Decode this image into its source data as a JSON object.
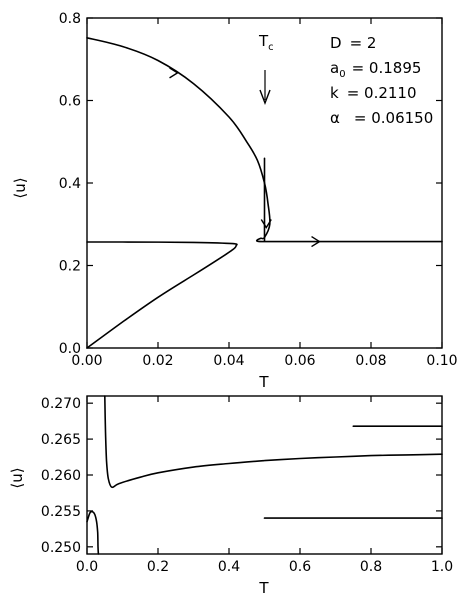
{
  "chart_data": [
    {
      "type": "line",
      "xlabel": "T",
      "ylabel": "⟨u⟩",
      "xlim": [
        0,
        0.1
      ],
      "ylim": [
        0,
        0.8
      ],
      "xticks": [
        "0.00",
        "0.02",
        "0.04",
        "0.06",
        "0.08",
        "0.10"
      ],
      "yticks": [
        "0.0",
        "0.2",
        "0.4",
        "0.6",
        "0.8"
      ],
      "annotations": {
        "tc_label": "T",
        "tc_sub": "c",
        "params": [
          {
            "label": "D",
            "label_sub": "",
            "eq": "= 2"
          },
          {
            "label": "a",
            "label_sub": "0",
            "eq": "= 0.1895"
          },
          {
            "label": "k",
            "label_sub": "",
            "eq": "= 0.2110"
          },
          {
            "label": "α",
            "label_sub": "",
            "eq": "= 0.06150"
          }
        ]
      },
      "series": [
        {
          "values_xy": [
            [
              0.0,
              0.752
            ],
            [
              0.01,
              0.731
            ],
            [
              0.02,
              0.697
            ],
            [
              0.03,
              0.641
            ],
            [
              0.04,
              0.56
            ],
            [
              0.045,
              0.5
            ],
            [
              0.048,
              0.455
            ],
            [
              0.05,
              0.4
            ],
            [
              0.051,
              0.35
            ],
            [
              0.0515,
              0.3
            ],
            [
              0.05,
              0.268
            ],
            [
              0.049,
              0.266
            ],
            [
              0.048,
              0.262
            ],
            [
              0.048,
              0.259
            ],
            [
              0.05,
              0.258
            ],
            [
              0.06,
              0.258
            ],
            [
              0.08,
              0.258
            ],
            [
              0.1,
              0.258
            ]
          ]
        },
        {
          "values_xy": [
            [
              0.0,
              0.0
            ],
            [
              0.01,
              0.063
            ],
            [
              0.02,
              0.123
            ],
            [
              0.03,
              0.177
            ],
            [
              0.037,
              0.215
            ],
            [
              0.041,
              0.238
            ],
            [
              0.042,
              0.248
            ],
            [
              0.041,
              0.253
            ],
            [
              0.03,
              0.256
            ],
            [
              0.01,
              0.257
            ],
            [
              0.0,
              0.257
            ]
          ]
        },
        {
          "values_xy": [
            [
              0.05,
              0.46
            ],
            [
              0.05,
              0.26
            ]
          ]
        }
      ]
    },
    {
      "type": "line",
      "xlabel": "T",
      "ylabel": "⟨u⟩",
      "xlim": [
        0,
        1.0
      ],
      "ylim": [
        0.249,
        0.271
      ],
      "xticks": [
        "0.0",
        "0.2",
        "0.4",
        "0.6",
        "0.8",
        "1.0"
      ],
      "yticks": [
        "0.250",
        "0.255",
        "0.260",
        "0.265",
        "0.270"
      ],
      "ytick_values": [
        0.25,
        0.255,
        0.26,
        0.265,
        0.27
      ],
      "series": [
        {
          "values_xy": [
            [
              0.05,
              0.271
            ],
            [
              0.052,
              0.266
            ],
            [
              0.055,
              0.262
            ],
            [
              0.06,
              0.2595
            ],
            [
              0.07,
              0.2583
            ],
            [
              0.09,
              0.2588
            ],
            [
              0.15,
              0.2597
            ],
            [
              0.2,
              0.2603
            ],
            [
              0.3,
              0.2611
            ],
            [
              0.4,
              0.2616
            ],
            [
              0.5,
              0.262
            ],
            [
              0.6,
              0.2623
            ],
            [
              0.7,
              0.2625
            ],
            [
              0.8,
              0.2627
            ],
            [
              0.9,
              0.2628
            ],
            [
              1.0,
              0.2629
            ]
          ]
        },
        {
          "values_xy": [
            [
              0.0,
              0.2535
            ],
            [
              0.008,
              0.2547
            ],
            [
              0.015,
              0.2549
            ],
            [
              0.022,
              0.2545
            ],
            [
              0.027,
              0.2535
            ],
            [
              0.03,
              0.252
            ],
            [
              0.031,
              0.25
            ],
            [
              0.032,
              0.249
            ]
          ]
        },
        {
          "values_xy": [
            [
              0.75,
              0.2668
            ],
            [
              1.0,
              0.2668
            ]
          ]
        },
        {
          "values_xy": [
            [
              0.5,
              0.254
            ],
            [
              1.0,
              0.254
            ]
          ]
        }
      ]
    }
  ]
}
